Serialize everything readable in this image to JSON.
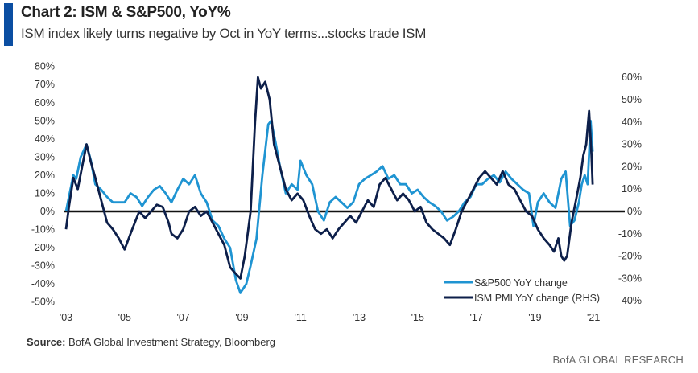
{
  "header": {
    "title": "Chart 2: ISM & S&P500, YoY%",
    "subtitle": "ISM index likely turns negative by Oct in YoY terms...stocks trade ISM"
  },
  "footer": {
    "source_label": "Source:",
    "source_text": "BofA Global Investment Strategy, Bloomberg",
    "brand": "BofA GLOBAL RESEARCH"
  },
  "chart_data": {
    "type": "line",
    "title": "Chart 2: ISM & S&P500, YoY%",
    "x_ticks": [
      "'03",
      "'05",
      "'07",
      "'09",
      "'11",
      "'13",
      "'15",
      "'17",
      "'19",
      "'21"
    ],
    "x_tick_values": [
      2003,
      2005,
      2007,
      2009,
      2011,
      2013,
      2015,
      2017,
      2019,
      2021
    ],
    "xlim": [
      2003,
      2021.6
    ],
    "left_axis": {
      "ylim": [
        -50,
        80
      ],
      "ticks": [
        "80%",
        "70%",
        "60%",
        "50%",
        "40%",
        "30%",
        "20%",
        "10%",
        "0%",
        "-10%",
        "-20%",
        "-30%",
        "-40%",
        "-50%"
      ],
      "tick_values": [
        80,
        70,
        60,
        50,
        40,
        30,
        20,
        10,
        0,
        -10,
        -20,
        -30,
        -40,
        -50
      ]
    },
    "right_axis": {
      "ylim": [
        -40,
        60
      ],
      "ticks": [
        "60%",
        "50%",
        "40%",
        "30%",
        "20%",
        "10%",
        "0%",
        "-10%",
        "-20%",
        "-30%",
        "-40%"
      ],
      "tick_values": [
        60,
        50,
        40,
        30,
        20,
        10,
        0,
        -10,
        -20,
        -30,
        -40
      ]
    },
    "grid": false,
    "legend_position": "bottom-right",
    "series": [
      {
        "name": "S&P500 YoY change",
        "axis": "left",
        "color": "#1f94d2",
        "x": [
          2003.0,
          2003.1,
          2003.25,
          2003.35,
          2003.5,
          2003.7,
          2003.85,
          2004.0,
          2004.2,
          2004.4,
          2004.6,
          2004.8,
          2005.0,
          2005.2,
          2005.4,
          2005.6,
          2005.8,
          2006.0,
          2006.2,
          2006.4,
          2006.6,
          2006.8,
          2007.0,
          2007.2,
          2007.4,
          2007.6,
          2007.8,
          2008.0,
          2008.2,
          2008.4,
          2008.6,
          2008.8,
          2008.95,
          2009.15,
          2009.3,
          2009.5,
          2009.7,
          2009.9,
          2010.0,
          2010.15,
          2010.3,
          2010.5,
          2010.7,
          2010.9,
          2011.0,
          2011.2,
          2011.4,
          2011.6,
          2011.8,
          2012.0,
          2012.2,
          2012.4,
          2012.6,
          2012.8,
          2013.0,
          2013.2,
          2013.4,
          2013.6,
          2013.8,
          2014.0,
          2014.2,
          2014.4,
          2014.6,
          2014.8,
          2015.0,
          2015.2,
          2015.4,
          2015.6,
          2015.8,
          2016.0,
          2016.2,
          2016.4,
          2016.6,
          2016.8,
          2017.0,
          2017.2,
          2017.4,
          2017.6,
          2017.8,
          2018.0,
          2018.2,
          2018.4,
          2018.6,
          2018.8,
          2018.95,
          2019.1,
          2019.3,
          2019.5,
          2019.7,
          2019.9,
          2020.05,
          2020.2,
          2020.35,
          2020.5,
          2020.6,
          2020.7,
          2020.8,
          2020.9,
          2020.97
        ],
        "y": [
          0,
          8,
          20,
          18,
          30,
          37,
          28,
          15,
          12,
          8,
          5,
          5,
          5,
          10,
          8,
          3,
          8,
          12,
          14,
          10,
          5,
          12,
          18,
          15,
          20,
          10,
          5,
          -5,
          -8,
          -15,
          -20,
          -38,
          -45,
          -40,
          -30,
          -15,
          20,
          48,
          50,
          38,
          25,
          10,
          15,
          12,
          28,
          20,
          15,
          0,
          -5,
          5,
          8,
          5,
          2,
          5,
          15,
          18,
          20,
          22,
          25,
          18,
          20,
          15,
          15,
          10,
          12,
          8,
          5,
          3,
          0,
          -5,
          -3,
          0,
          5,
          8,
          15,
          15,
          18,
          20,
          16,
          22,
          18,
          15,
          12,
          10,
          -8,
          5,
          10,
          5,
          2,
          18,
          22,
          -8,
          -5,
          5,
          15,
          20,
          15,
          50,
          33
        ]
      },
      {
        "name": "ISM PMI YoY change (RHS)",
        "axis": "right",
        "color": "#0d1f4a",
        "x": [
          2003.0,
          2003.1,
          2003.25,
          2003.4,
          2003.55,
          2003.7,
          2003.85,
          2004.0,
          2004.2,
          2004.4,
          2004.6,
          2004.8,
          2005.0,
          2005.2,
          2005.35,
          2005.5,
          2005.7,
          2005.9,
          2006.1,
          2006.3,
          2006.5,
          2006.6,
          2006.8,
          2007.0,
          2007.2,
          2007.4,
          2007.6,
          2007.8,
          2008.0,
          2008.2,
          2008.4,
          2008.6,
          2008.8,
          2008.95,
          2009.1,
          2009.3,
          2009.45,
          2009.55,
          2009.65,
          2009.8,
          2009.95,
          2010.1,
          2010.3,
          2010.5,
          2010.7,
          2010.9,
          2011.1,
          2011.3,
          2011.5,
          2011.7,
          2011.9,
          2012.1,
          2012.3,
          2012.5,
          2012.7,
          2012.9,
          2013.1,
          2013.3,
          2013.5,
          2013.7,
          2013.9,
          2014.1,
          2014.3,
          2014.5,
          2014.7,
          2014.9,
          2015.1,
          2015.3,
          2015.5,
          2015.7,
          2015.9,
          2016.1,
          2016.3,
          2016.5,
          2016.7,
          2016.9,
          2017.1,
          2017.3,
          2017.5,
          2017.7,
          2017.9,
          2018.1,
          2018.3,
          2018.5,
          2018.7,
          2018.9,
          2019.1,
          2019.3,
          2019.5,
          2019.65,
          2019.8,
          2019.9,
          2020.0,
          2020.1,
          2020.25,
          2020.4,
          2020.55,
          2020.65,
          2020.75,
          2020.85,
          2020.93,
          2020.97
        ],
        "y": [
          -8,
          2,
          15,
          10,
          20,
          30,
          22,
          15,
          5,
          -5,
          -8,
          -12,
          -17,
          -10,
          -5,
          0,
          -3,
          0,
          3,
          2,
          -5,
          -10,
          -12,
          -8,
          0,
          2,
          -2,
          0,
          -5,
          -10,
          -15,
          -25,
          -28,
          -30,
          -20,
          0,
          40,
          60,
          55,
          58,
          50,
          30,
          20,
          10,
          5,
          8,
          5,
          -2,
          -8,
          -10,
          -8,
          -12,
          -8,
          -5,
          -2,
          -5,
          0,
          5,
          2,
          12,
          15,
          10,
          5,
          8,
          5,
          0,
          2,
          -5,
          -8,
          -10,
          -12,
          -15,
          -8,
          0,
          5,
          10,
          15,
          18,
          15,
          12,
          18,
          12,
          10,
          5,
          0,
          -2,
          -8,
          -12,
          -15,
          -18,
          -12,
          -20,
          -22,
          -20,
          -5,
          5,
          15,
          25,
          30,
          45,
          25,
          12
        ]
      }
    ]
  }
}
